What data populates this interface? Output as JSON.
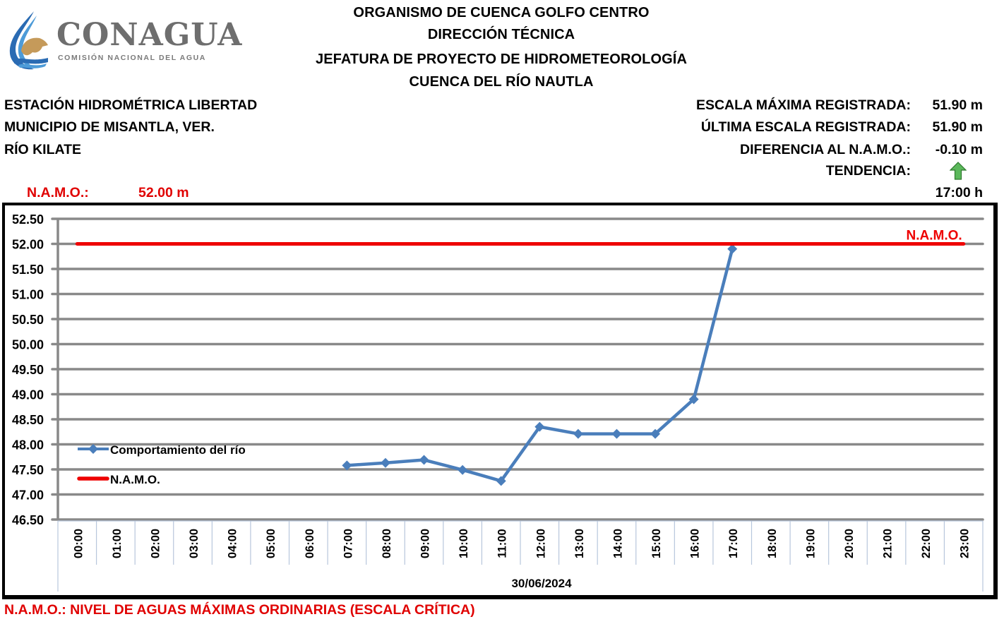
{
  "logo": {
    "name": "CONAGUA",
    "subtitle": "COMISIÓN NACIONAL DEL AGUA"
  },
  "header": {
    "lines": [
      "ORGANISMO DE CUENCA GOLFO CENTRO",
      "DIRECCIÓN TÉCNICA",
      "JEFATURA DE PROYECTO DE HIDROMETEOROLOGÍA",
      "CUENCA DEL RÍO NAUTLA"
    ]
  },
  "station": {
    "name": "ESTACIÓN HIDROMÉTRICA LIBERTAD",
    "municipality": "MUNICIPIO DE MISANTLA, VER.",
    "river": "RÍO KILATE",
    "namo_label": "N.A.M.O.:",
    "namo_value": "52.00 m"
  },
  "stats": {
    "max_label": "ESCALA MÁXIMA REGISTRADA:",
    "max_value": "51.90 m",
    "last_label": "ÚLTIMA ESCALA REGISTRADA:",
    "last_value": "51.90 m",
    "diff_label": "DIFERENCIA AL N.A.M.O.:",
    "diff_value": "-0.10 m",
    "trend_label": "TENDENCIA:",
    "trend_icon": "arrow-up-icon",
    "time": "17:00 h"
  },
  "colors": {
    "river_series": "#4a7ebb",
    "namo_line": "#ee0000",
    "gridline": "#898989",
    "trend_arrow": "#5cb85c"
  },
  "footnote": "N.A.M.O.: NIVEL DE AGUAS MÁXIMAS ORDINARIAS (ESCALA CRÍTICA)",
  "chart_data": {
    "type": "line",
    "title": "",
    "xlabel": "30/06/2024",
    "ylabel": "",
    "ylim": [
      46.5,
      52.5
    ],
    "y_ticks": [
      "52.50",
      "52.00",
      "51.50",
      "51.00",
      "50.50",
      "50.00",
      "49.50",
      "49.00",
      "48.50",
      "48.00",
      "47.50",
      "47.00",
      "46.50"
    ],
    "grid": true,
    "legend_position": "inside-left",
    "categories": [
      "00:00",
      "01:00",
      "02:00",
      "03:00",
      "04:00",
      "05:00",
      "06:00",
      "07:00",
      "08:00",
      "09:00",
      "10:00",
      "11:00",
      "12:00",
      "13:00",
      "14:00",
      "15:00",
      "16:00",
      "17:00",
      "18:00",
      "19:00",
      "20:00",
      "21:00",
      "22:00",
      "23:00"
    ],
    "series": [
      {
        "name": "Comportamiento del río",
        "color": "#4a7ebb",
        "marker": "diamond",
        "values": [
          null,
          null,
          null,
          null,
          null,
          null,
          null,
          47.58,
          47.63,
          47.69,
          47.49,
          47.27,
          48.35,
          48.21,
          48.21,
          48.21,
          48.9,
          51.9,
          null,
          null,
          null,
          null,
          null,
          null
        ]
      },
      {
        "name": "N.A.M.O.",
        "color": "#ee0000",
        "marker": "none",
        "values": [
          52.0,
          52.0,
          52.0,
          52.0,
          52.0,
          52.0,
          52.0,
          52.0,
          52.0,
          52.0,
          52.0,
          52.0,
          52.0,
          52.0,
          52.0,
          52.0,
          52.0,
          52.0,
          52.0,
          52.0,
          52.0,
          52.0,
          52.0,
          52.0
        ]
      }
    ],
    "annotations": [
      {
        "text": "N.A.M.O.",
        "at": "23:00",
        "y": 52.0,
        "color": "#ee0000"
      }
    ]
  }
}
